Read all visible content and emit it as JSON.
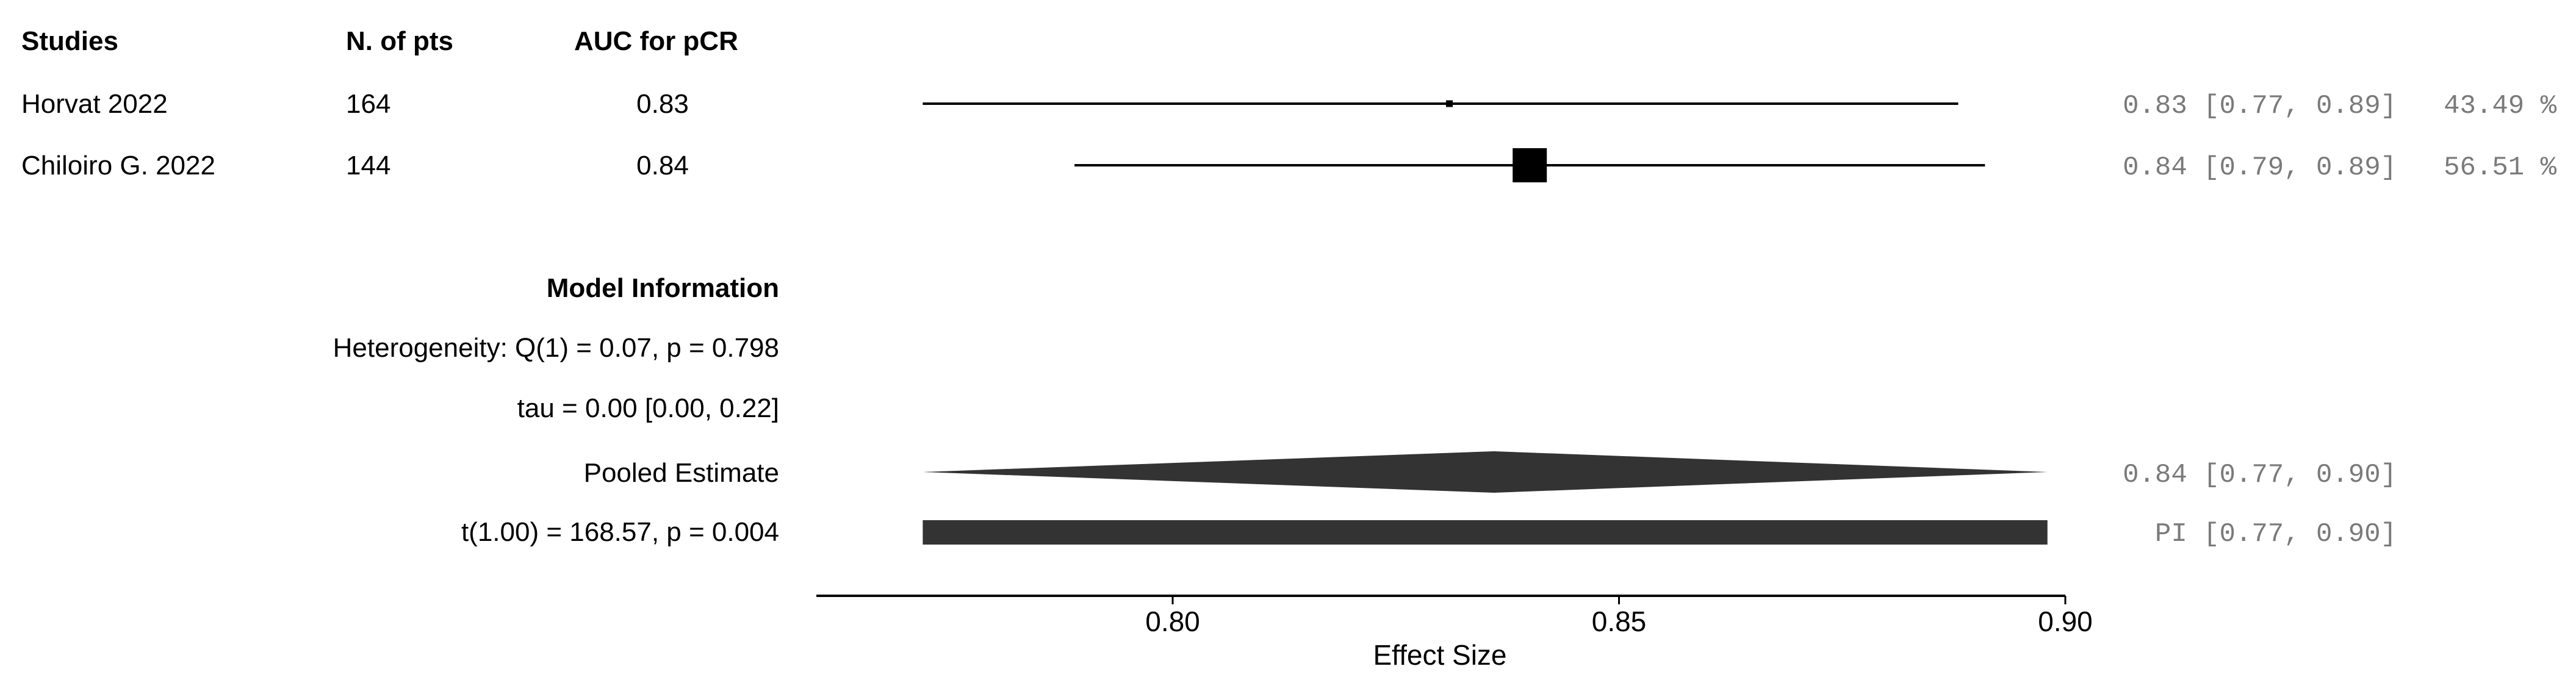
{
  "chart_data": {
    "type": "forest",
    "columns": {
      "study": "Studies",
      "n": "N. of pts",
      "auc": "AUC for pCR"
    },
    "studies": [
      {
        "name": "Horvat 2022",
        "n": "164",
        "auc_label": "0.83",
        "estimate": 0.831,
        "ci": [
          0.772,
          0.888
        ],
        "result_text": "0.83 [0.77, 0.89]",
        "weight_text": "43.49 %",
        "weight": 43.49
      },
      {
        "name": "Chiloiro G. 2022",
        "n": "144",
        "auc_label": "0.84",
        "estimate": 0.84,
        "ci": [
          0.789,
          0.891
        ],
        "result_text": "0.84 [0.79, 0.89]",
        "weight_text": "56.51 %",
        "weight": 56.51
      }
    ],
    "model_info": {
      "title": "Model Information",
      "heterogeneity": "Heterogeneity: Q(1) = 0.07, p = 0.798",
      "tau": "tau = 0.00 [0.00, 0.22]",
      "pooled_label": "Pooled Estimate",
      "pooled_estimate": 0.836,
      "pooled_ci": [
        0.772,
        0.898
      ],
      "pooled_text": "0.84 [0.77, 0.90]",
      "t_test": "t(1.00) = 168.57, p = 0.004",
      "pi": [
        0.772,
        0.898
      ],
      "pi_text": "PI [0.77, 0.90]"
    },
    "x_axis": {
      "label": "Effect Size",
      "range": [
        0.76,
        0.9
      ],
      "ticks": [
        0.8,
        0.85,
        0.9
      ],
      "tick_labels": [
        "0.80",
        "0.85",
        "0.90"
      ]
    },
    "colors": {
      "marker": "#000000",
      "pooled": "#333333",
      "result_text": "#7a7a7a"
    }
  }
}
